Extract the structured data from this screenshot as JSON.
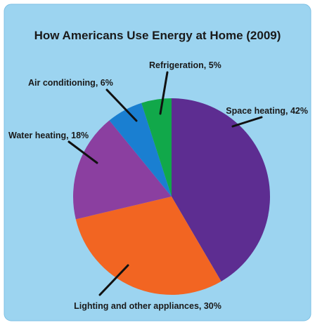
{
  "chart_data": {
    "type": "pie",
    "title": "How Americans Use Energy at Home (2009)",
    "slices": [
      {
        "label": "Space heating, 42%",
        "value": 42,
        "color": "#5d2d91"
      },
      {
        "label": "Lighting and other appliances, 30%",
        "value": 30,
        "color": "#f26522"
      },
      {
        "label": "Water heating, 18%",
        "value": 18,
        "color": "#8b3fa0"
      },
      {
        "label": "Air conditioning, 6%",
        "value": 6,
        "color": "#1a7fd1"
      },
      {
        "label": "Refrigeration, 5%",
        "value": 5,
        "color": "#11a84a"
      }
    ],
    "background": "#9cd4f0",
    "start_angle_deg": 0,
    "direction": "clockwise"
  }
}
